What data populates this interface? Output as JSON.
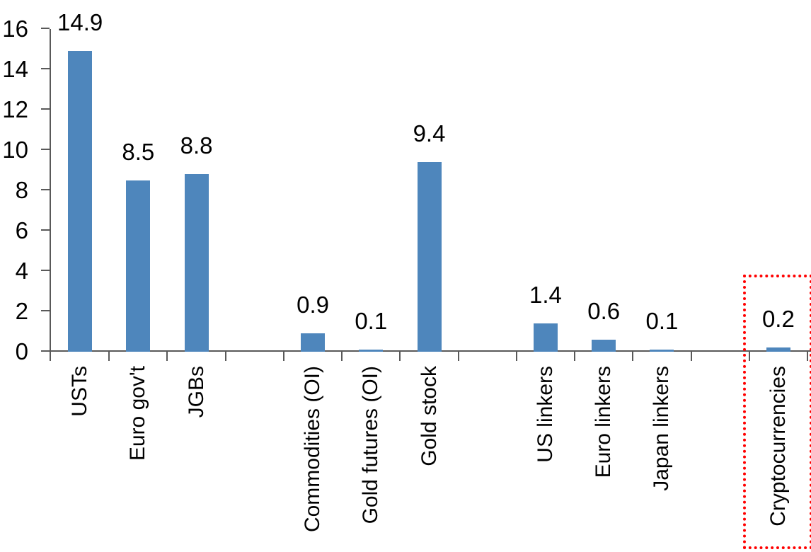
{
  "chart_data": {
    "type": "bar",
    "title": "",
    "categories": [
      "USTs",
      "Euro gov't",
      "JGBs",
      "Commodities (OI)",
      "Gold futures (OI)",
      "Gold stock",
      "US linkers",
      "Euro linkers",
      "Japan linkers",
      "Cryptocurrencies"
    ],
    "values": [
      14.9,
      8.5,
      8.8,
      0.9,
      0.1,
      9.4,
      1.4,
      0.6,
      0.1,
      0.2
    ],
    "data_labels": [
      "14.9",
      "8.5",
      "8.8",
      "0.9",
      "0.1",
      "9.4",
      "1.4",
      "0.6",
      "0.1",
      "0.2"
    ],
    "slot_index": [
      0,
      1,
      2,
      4,
      5,
      6,
      8,
      9,
      10,
      12
    ],
    "total_slots": 13,
    "group_gaps_after": [
      "JGBs",
      "Gold stock",
      "Japan linkers"
    ],
    "ylim": [
      0,
      16
    ],
    "ytick_step": 2,
    "yticks": [
      0,
      2,
      4,
      6,
      8,
      10,
      12,
      14,
      16
    ],
    "xlabel": "",
    "ylabel": "",
    "grid": false,
    "legend": false,
    "x_labels_rotated_degrees": 90,
    "bar_color": "#4E86BC",
    "axis_color": "#595959",
    "text_color": "#000000",
    "highlight": {
      "category": "Cryptocurrencies",
      "style": "red-dotted-box",
      "color": "#FF0000"
    }
  }
}
